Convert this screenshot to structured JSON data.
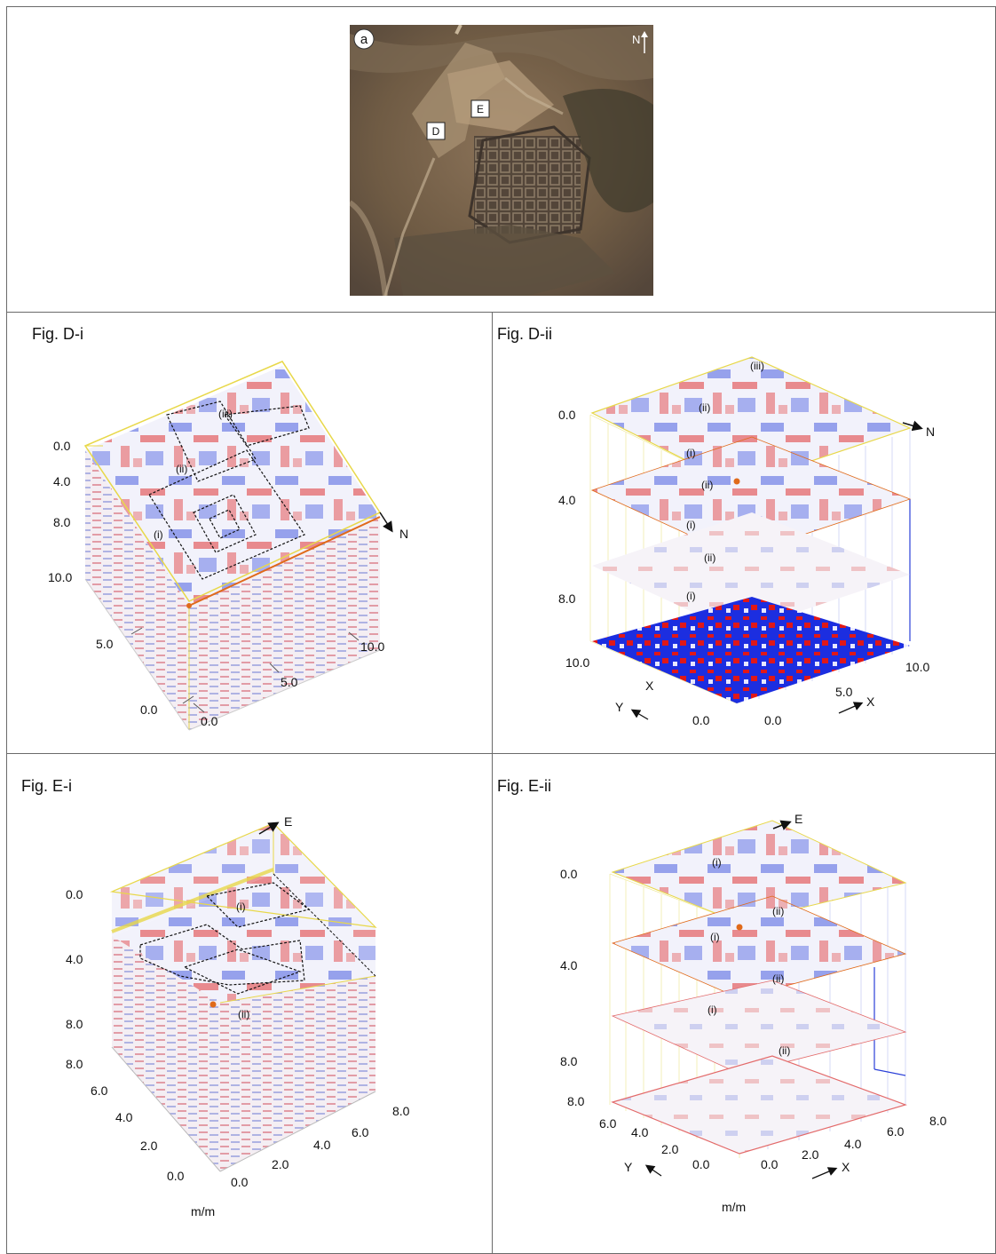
{
  "map": {
    "badge": "a",
    "north": "N",
    "site_d": "D",
    "site_e": "E"
  },
  "panels": {
    "d1": {
      "title": "Fig. D-i",
      "depth_ticks": [
        "0.0",
        "4.0",
        "8.0",
        "10.0"
      ],
      "y_ticks": [
        "5.0",
        "0.0"
      ],
      "x_ticks": [
        "0.0",
        "5.0",
        "10.0"
      ],
      "north": "N",
      "regions": [
        "(iii)",
        "(ii)",
        "(i)"
      ]
    },
    "d2": {
      "title": "Fig. D-ii",
      "depth_ticks": [
        "0.0",
        "4.0",
        "8.0",
        "10.0"
      ],
      "north": "N",
      "slice_labels": [
        "(iii)",
        "(ii)",
        "(i)",
        "(ii)",
        "(i)",
        "(ii)",
        "(i)"
      ],
      "y_ticks": [
        "0.0"
      ],
      "x_ticks": [
        "0.0",
        "5.0",
        "10.0"
      ],
      "axis_y": "Y",
      "axis_x": "X",
      "axis_x_mid": "X"
    },
    "e1": {
      "title": "Fig. E-i",
      "east": "E",
      "depth_ticks": [
        "0.0",
        "4.0",
        "8.0"
      ],
      "y_ticks": [
        "8.0",
        "6.0",
        "4.0",
        "2.0",
        "0.0"
      ],
      "x_ticks": [
        "0.0",
        "2.0",
        "4.0",
        "6.0",
        "8.0"
      ],
      "regions": [
        "(i)",
        "(ii)"
      ],
      "unit": "m/m"
    },
    "e2": {
      "title": "Fig. E-ii",
      "east": "E",
      "depth_ticks": [
        "0.0",
        "4.0",
        "8.0"
      ],
      "slice_labels": [
        "(i)",
        "(ii)",
        "(i)",
        "(ii)",
        "(i)",
        "(ii)"
      ],
      "y_ticks": [
        "8.0",
        "6.0",
        "4.0",
        "2.0",
        "0.0"
      ],
      "x_ticks": [
        "0.0",
        "2.0",
        "4.0",
        "6.0",
        "8.0"
      ],
      "axis_y": "Y",
      "axis_x": "X",
      "unit": "m/m"
    }
  },
  "colors": {
    "red": "#e02020",
    "blue": "#2a3fd8",
    "frame_yellow": "#e8d84a",
    "marker": "#e06a1a"
  }
}
